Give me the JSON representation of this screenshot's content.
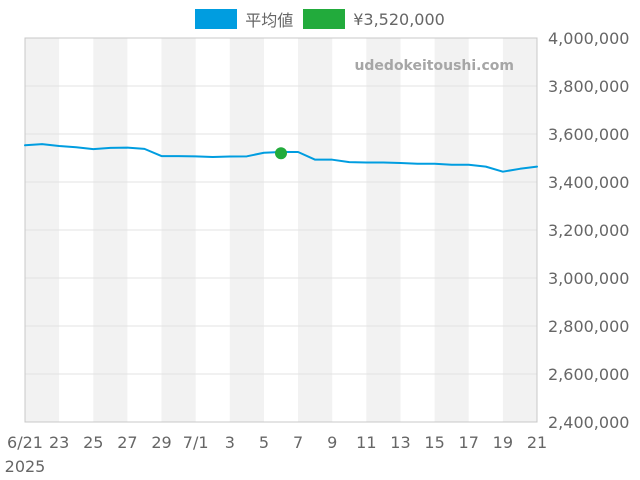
{
  "legend": [
    {
      "label": "平均値",
      "color": "#009de0"
    },
    {
      "label": "¥3,520,000",
      "color": "#22ab3c"
    }
  ],
  "watermark": "udedokeitoushi.com",
  "chart_data": {
    "type": "line",
    "title": "",
    "xlabel": "",
    "ylabel": "",
    "y_axis_position": "right",
    "ylim": [
      2400000,
      4000000
    ],
    "yticks": [
      2400000,
      2600000,
      2800000,
      3000000,
      3200000,
      3400000,
      3600000,
      3800000,
      4000000
    ],
    "ytick_labels": [
      "2,400,000",
      "2,600,000",
      "2,800,000",
      "3,000,000",
      "3,200,000",
      "3,400,000",
      "3,600,000",
      "3,800,000",
      "4,000,000"
    ],
    "x_start": "2025-06-21",
    "x_end": "2025-07-21",
    "xticks": [
      {
        "date": "2025-06-21",
        "label": "6/21",
        "sublabel": "2025"
      },
      {
        "date": "2025-06-23",
        "label": "23"
      },
      {
        "date": "2025-06-25",
        "label": "25"
      },
      {
        "date": "2025-06-27",
        "label": "27"
      },
      {
        "date": "2025-06-29",
        "label": "29"
      },
      {
        "date": "2025-07-01",
        "label": "7/1"
      },
      {
        "date": "2025-07-03",
        "label": "3"
      },
      {
        "date": "2025-07-05",
        "label": "5"
      },
      {
        "date": "2025-07-07",
        "label": "7"
      },
      {
        "date": "2025-07-09",
        "label": "9"
      },
      {
        "date": "2025-07-11",
        "label": "11"
      },
      {
        "date": "2025-07-13",
        "label": "13"
      },
      {
        "date": "2025-07-15",
        "label": "15"
      },
      {
        "date": "2025-07-17",
        "label": "17"
      },
      {
        "date": "2025-07-19",
        "label": "19"
      },
      {
        "date": "2025-07-21",
        "label": "21"
      }
    ],
    "alternating_bands": true,
    "grid": true,
    "series": [
      {
        "name": "平均値",
        "color": "#009de0",
        "points": [
          {
            "x": "2025-06-21",
            "y": 3553000
          },
          {
            "x": "2025-06-22",
            "y": 3558000
          },
          {
            "x": "2025-06-23",
            "y": 3550000
          },
          {
            "x": "2025-06-24",
            "y": 3545000
          },
          {
            "x": "2025-06-25",
            "y": 3537000
          },
          {
            "x": "2025-06-26",
            "y": 3542000
          },
          {
            "x": "2025-06-27",
            "y": 3543000
          },
          {
            "x": "2025-06-28",
            "y": 3538000
          },
          {
            "x": "2025-06-29",
            "y": 3508000
          },
          {
            "x": "2025-06-30",
            "y": 3508000
          },
          {
            "x": "2025-07-01",
            "y": 3507000
          },
          {
            "x": "2025-07-02",
            "y": 3504000
          },
          {
            "x": "2025-07-03",
            "y": 3506000
          },
          {
            "x": "2025-07-04",
            "y": 3507000
          },
          {
            "x": "2025-07-05",
            "y": 3522000
          },
          {
            "x": "2025-07-06",
            "y": 3525000
          },
          {
            "x": "2025-07-07",
            "y": 3525000
          },
          {
            "x": "2025-07-08",
            "y": 3493000
          },
          {
            "x": "2025-07-09",
            "y": 3493000
          },
          {
            "x": "2025-07-10",
            "y": 3483000
          },
          {
            "x": "2025-07-11",
            "y": 3481000
          },
          {
            "x": "2025-07-12",
            "y": 3481000
          },
          {
            "x": "2025-07-13",
            "y": 3479000
          },
          {
            "x": "2025-07-14",
            "y": 3476000
          },
          {
            "x": "2025-07-15",
            "y": 3476000
          },
          {
            "x": "2025-07-16",
            "y": 3472000
          },
          {
            "x": "2025-07-17",
            "y": 3472000
          },
          {
            "x": "2025-07-18",
            "y": 3464000
          },
          {
            "x": "2025-07-19",
            "y": 3443000
          },
          {
            "x": "2025-07-20",
            "y": 3455000
          },
          {
            "x": "2025-07-21",
            "y": 3464000
          }
        ]
      },
      {
        "name": "¥3,520,000",
        "type": "scatter",
        "color": "#22ab3c",
        "points": [
          {
            "x": "2025-07-06",
            "y": 3520000
          }
        ]
      }
    ]
  }
}
